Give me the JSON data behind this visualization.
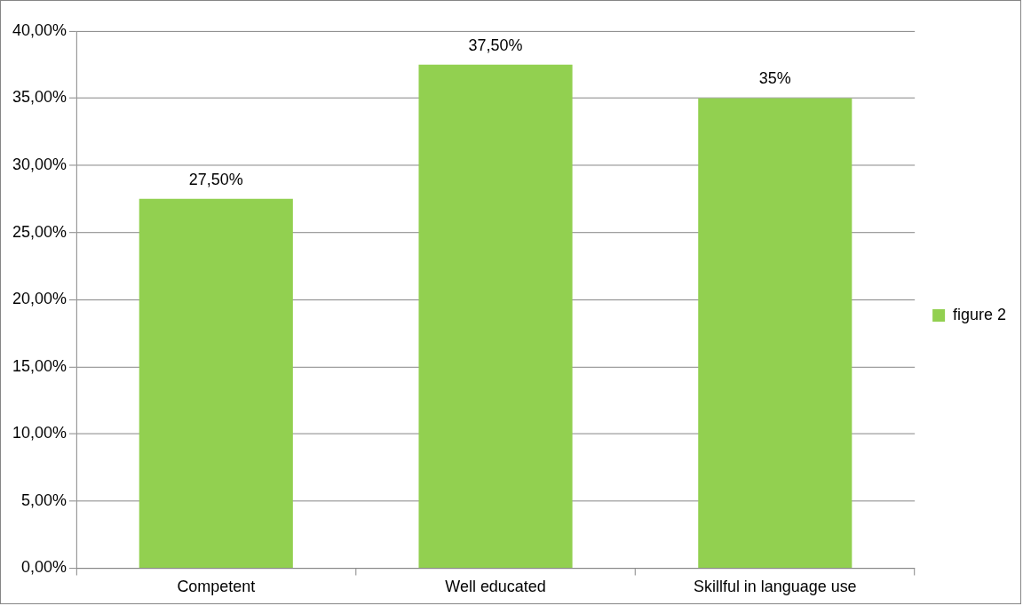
{
  "chart_data": {
    "type": "bar",
    "categories": [
      "Competent",
      "Well educated",
      "Skillful in language use"
    ],
    "series": [
      {
        "name": "figure 2",
        "color": "#92d050",
        "values": [
          27.5,
          37.5,
          35
        ],
        "value_labels": [
          "27,50%",
          "37,50%",
          "35%"
        ]
      }
    ],
    "ylim": [
      0,
      40
    ],
    "yticks": [
      {
        "value": 0,
        "label": "0,00%"
      },
      {
        "value": 5,
        "label": "5,00%"
      },
      {
        "value": 10,
        "label": "10,00%"
      },
      {
        "value": 15,
        "label": "15,00%"
      },
      {
        "value": 20,
        "label": "20,00%"
      },
      {
        "value": 25,
        "label": "25,00%"
      },
      {
        "value": 30,
        "label": "30,00%"
      },
      {
        "value": 35,
        "label": "35,00%"
      },
      {
        "value": 40,
        "label": "40,00%"
      }
    ],
    "grid": "y",
    "legend": "right"
  }
}
